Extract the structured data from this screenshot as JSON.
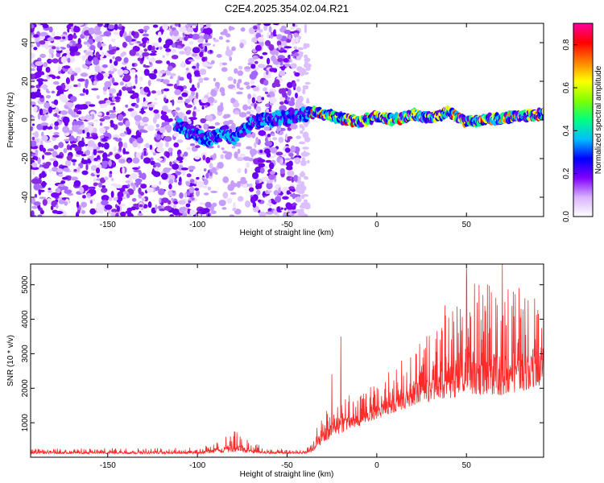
{
  "title": "C2E4.2025.354.02.04.R21",
  "chart_data": [
    {
      "type": "heatmap",
      "xlabel": "Height of straight line (km)",
      "ylabel": "Frequency (Hz)",
      "xlim": [
        -193,
        93
      ],
      "ylim": [
        -50,
        50
      ],
      "xticks": [
        -150,
        -100,
        -50,
        0,
        50
      ],
      "yticks": [
        -40,
        -20,
        0,
        20,
        40
      ],
      "colorbar": {
        "label": "Normalized spectral amplitude",
        "range": [
          0.0,
          0.9
        ],
        "ticks": [
          0.0,
          0.2,
          0.4,
          0.6,
          0.8
        ],
        "colors": [
          "#ffffff",
          "#d9b3ff",
          "#8000ff",
          "#0000ff",
          "#00bfff",
          "#00ff80",
          "#80ff00",
          "#ffff00",
          "#ff8000",
          "#ff0000",
          "#ff00a0"
        ]
      },
      "features": {
        "noise_region_km": [
          -193,
          -38
        ],
        "noise_gap_km": [
          -92,
          -70
        ],
        "signal_track": {
          "x": [
            -110,
            -100,
            -95,
            -90,
            -85,
            -80,
            -75,
            -70,
            -65,
            -60,
            -55,
            -50,
            -45,
            -40,
            -35,
            -30,
            -20,
            -10,
            0,
            10,
            20,
            30,
            40,
            50,
            60,
            70,
            80,
            93
          ],
          "y": [
            -3,
            -8,
            -10,
            -9,
            -6,
            -10,
            -5,
            -2,
            0,
            0,
            1,
            1,
            2,
            3,
            4,
            3,
            1,
            -1,
            2,
            0,
            3,
            1,
            4,
            -1,
            0,
            1,
            2,
            3
          ]
        }
      }
    },
    {
      "type": "line",
      "xlabel": "Height of straight line (km)",
      "ylabel": "SNR (10 * v/v)",
      "xlim": [
        -193,
        93
      ],
      "ylim": [
        0,
        5600
      ],
      "xticks": [
        -150,
        -100,
        -50,
        0,
        50
      ],
      "yticks": [
        1000,
        2000,
        3000,
        4000,
        5000
      ],
      "series_color": "#ff0000",
      "envelope": {
        "x": [
          -193,
          -100,
          -90,
          -80,
          -70,
          -60,
          -40,
          -35,
          -30,
          -25,
          -20,
          -15,
          -10,
          -5,
          0,
          10,
          20,
          30,
          40,
          50,
          60,
          70,
          80,
          93
        ],
        "low": [
          100,
          100,
          120,
          150,
          130,
          100,
          100,
          150,
          400,
          600,
          700,
          800,
          900,
          1000,
          1100,
          1300,
          1500,
          1600,
          1700,
          1800,
          1800,
          1800,
          1900,
          2100
        ],
        "high": [
          250,
          280,
          420,
          800,
          450,
          250,
          250,
          700,
          1200,
          1600,
          2400,
          1800,
          1800,
          2000,
          2200,
          2600,
          3200,
          3600,
          4300,
          5300,
          5000,
          5400,
          5000,
          4400
        ]
      },
      "spikes": [
        {
          "x": -20,
          "y": 3500
        },
        {
          "x": -25,
          "y": 2400
        },
        {
          "x": 38,
          "y": 4400
        },
        {
          "x": 50,
          "y": 5500
        },
        {
          "x": 57,
          "y": 5000
        },
        {
          "x": 70,
          "y": 5600
        },
        {
          "x": 88,
          "y": 4600
        }
      ]
    }
  ]
}
